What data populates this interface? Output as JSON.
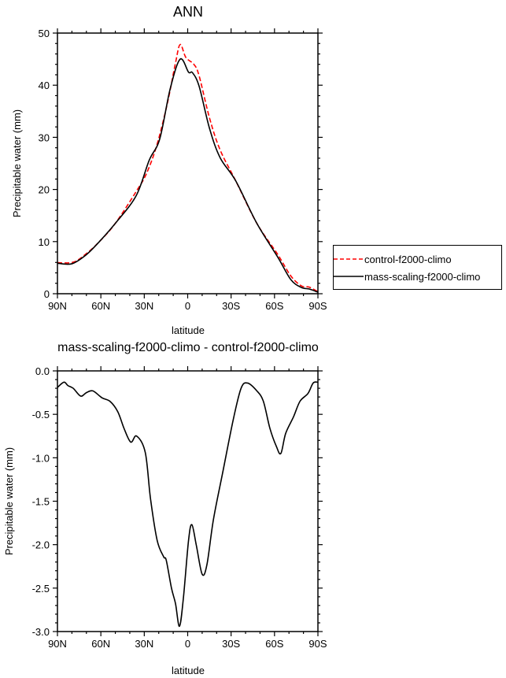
{
  "chart_data": [
    {
      "type": "line",
      "title": "ANN",
      "xlabel": "latitude",
      "ylabel": "Precipitable water (mm)",
      "xlim": [
        90,
        -90
      ],
      "ylim": [
        0,
        50
      ],
      "x_ticks": [
        90,
        60,
        30,
        0,
        -30,
        -60,
        -90
      ],
      "x_tick_labels": [
        "90N",
        "60N",
        "30N",
        "0",
        "30S",
        "60S",
        "90S"
      ],
      "y_ticks": [
        0,
        10,
        20,
        30,
        40,
        50
      ],
      "y_tick_labels": [
        "0",
        "10",
        "20",
        "30",
        "40",
        "50"
      ],
      "grid": false,
      "legend_position": "right",
      "series": [
        {
          "name": "control-f2000-climo",
          "color": "#ff0000",
          "dash": "dashed",
          "x": [
            90,
            79,
            70,
            61,
            50,
            35.6,
            28.4,
            21.1,
            13.9,
            8.4,
            5.2,
            1.2,
            -4.3,
            -7.9,
            -15.1,
            -22.4,
            -33.3,
            -47.8,
            -62.3,
            -71.3,
            -78.6,
            -84,
            -90
          ],
          "y": [
            5.95,
            6.05,
            7.7,
            10,
            13.5,
            19.6,
            23.1,
            28.7,
            36.7,
            44.3,
            47.8,
            45.3,
            44,
            41.8,
            33.7,
            27.6,
            21.6,
            13.5,
            7.5,
            3.4,
            1.5,
            1.26,
            0.4
          ]
        },
        {
          "name": "mass-scaling-f2000-climo",
          "color": "#000000",
          "dash": "solid",
          "x": [
            90,
            80,
            70,
            61,
            50,
            35.6,
            26.6,
            19.3,
            12.1,
            5.2,
            -0.6,
            -3.3,
            -7.9,
            -15.1,
            -22.4,
            -33.3,
            -47.8,
            -62.3,
            -71.3,
            -78.6,
            -84,
            -90
          ],
          "y": [
            5.85,
            5.75,
            7.5,
            10,
            13.5,
            18.8,
            25.6,
            29.7,
            39.3,
            45,
            42.5,
            42.4,
            39.8,
            31.7,
            26.1,
            21.6,
            13.5,
            7.0,
            2.7,
            1.2,
            0.9,
            0.3
          ]
        }
      ]
    },
    {
      "type": "line",
      "title": "mass-scaling-f2000-climo - control-f2000-climo",
      "xlabel": "latitude",
      "ylabel": "Precipitable water (mm)",
      "xlim": [
        90,
        -90
      ],
      "ylim": [
        -3.0,
        0.0
      ],
      "x_ticks": [
        90,
        60,
        30,
        0,
        -30,
        -60,
        -90
      ],
      "x_tick_labels": [
        "90N",
        "60N",
        "30N",
        "0",
        "30S",
        "60S",
        "90S"
      ],
      "y_ticks": [
        0,
        -0.5,
        -1,
        -1.5,
        -2,
        -2.5,
        -3
      ],
      "y_tick_labels": [
        "0.0",
        "-0.5",
        "-1.0",
        "-1.5",
        "-2.0",
        "-2.5",
        "-3.0"
      ],
      "grid": false,
      "series": [
        {
          "color": "#000000",
          "dash": "solid",
          "x": [
            90,
            85.5,
            82.7,
            79.1,
            74,
            70,
            65.5,
            59.2,
            53.7,
            48.3,
            43.8,
            39.3,
            35.3,
            29.3,
            25.7,
            21.1,
            16.6,
            14.8,
            11.2,
            8.4,
            5.7,
            3,
            -0.6,
            -2.9,
            -6,
            -10,
            -13.3,
            -17.8,
            -24.2,
            -31.5,
            -36.9,
            -41.4,
            -47.8,
            -52.3,
            -56.8,
            -61.3,
            -64.4,
            -67.7,
            -73.1,
            -77.6,
            -83.1,
            -86.7,
            -90
          ],
          "y": [
            -0.19,
            -0.13,
            -0.17,
            -0.2,
            -0.29,
            -0.25,
            -0.23,
            -0.31,
            -0.35,
            -0.47,
            -0.67,
            -0.82,
            -0.75,
            -0.94,
            -1.47,
            -1.95,
            -2.14,
            -2.18,
            -2.5,
            -2.68,
            -2.94,
            -2.62,
            -1.95,
            -1.77,
            -2.01,
            -2.34,
            -2.23,
            -1.71,
            -1.17,
            -0.56,
            -0.2,
            -0.14,
            -0.23,
            -0.35,
            -0.66,
            -0.87,
            -0.95,
            -0.72,
            -0.53,
            -0.35,
            -0.26,
            -0.14,
            -0.13
          ]
        }
      ]
    }
  ]
}
